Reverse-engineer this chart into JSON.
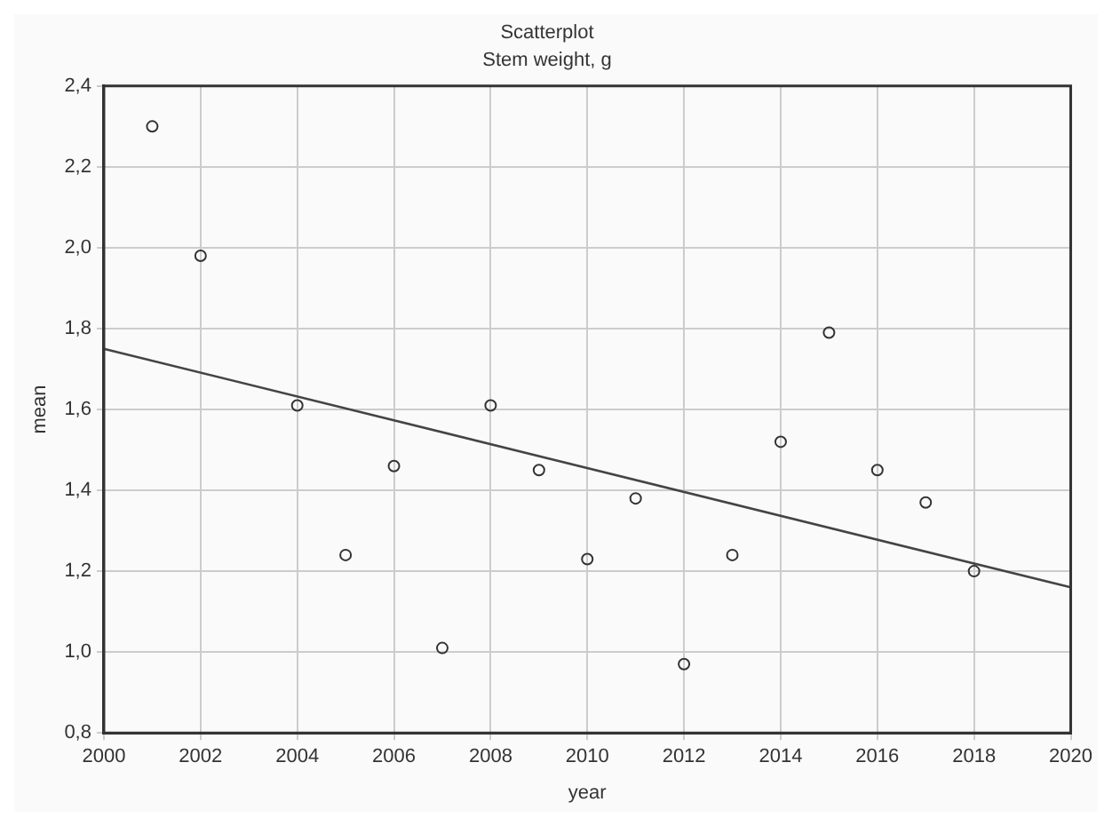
{
  "chart_data": {
    "type": "scatter",
    "title": "Scatterplot",
    "subtitle": "Stem weight, g",
    "xlabel": "year",
    "ylabel": "mean",
    "xlim": [
      2000,
      2020
    ],
    "xticks": [
      2000,
      2002,
      2004,
      2006,
      2008,
      2010,
      2012,
      2014,
      2016,
      2018,
      2020
    ],
    "ylim": [
      0.8,
      2.4
    ],
    "yticks": [
      {
        "value": 0.8,
        "label": "0,8"
      },
      {
        "value": 1.0,
        "label": "1,0"
      },
      {
        "value": 1.2,
        "label": "1,2"
      },
      {
        "value": 1.4,
        "label": "1,4"
      },
      {
        "value": 1.6,
        "label": "1,6"
      },
      {
        "value": 1.8,
        "label": "1,8"
      },
      {
        "value": 2.0,
        "label": "2,0"
      },
      {
        "value": 2.2,
        "label": "2,2"
      },
      {
        "value": 2.4,
        "label": "2,4"
      }
    ],
    "grid": true,
    "legend": false,
    "series": [
      {
        "type": "scatter",
        "marker": "circle",
        "color": "#333333",
        "x": [
          2001,
          2002,
          2004,
          2005,
          2006,
          2007,
          2008,
          2009,
          2010,
          2011,
          2012,
          2013,
          2014,
          2015,
          2016,
          2017,
          2018
        ],
        "values": [
          2.3,
          1.98,
          1.61,
          1.24,
          1.46,
          1.01,
          1.61,
          1.45,
          1.23,
          1.38,
          0.97,
          1.24,
          1.52,
          1.79,
          1.45,
          1.37,
          1.2
        ]
      },
      {
        "type": "line",
        "marker": "none",
        "line_style": "solid",
        "color": "#444444",
        "x": [
          2000,
          2020
        ],
        "values": [
          1.75,
          1.16
        ]
      }
    ]
  }
}
